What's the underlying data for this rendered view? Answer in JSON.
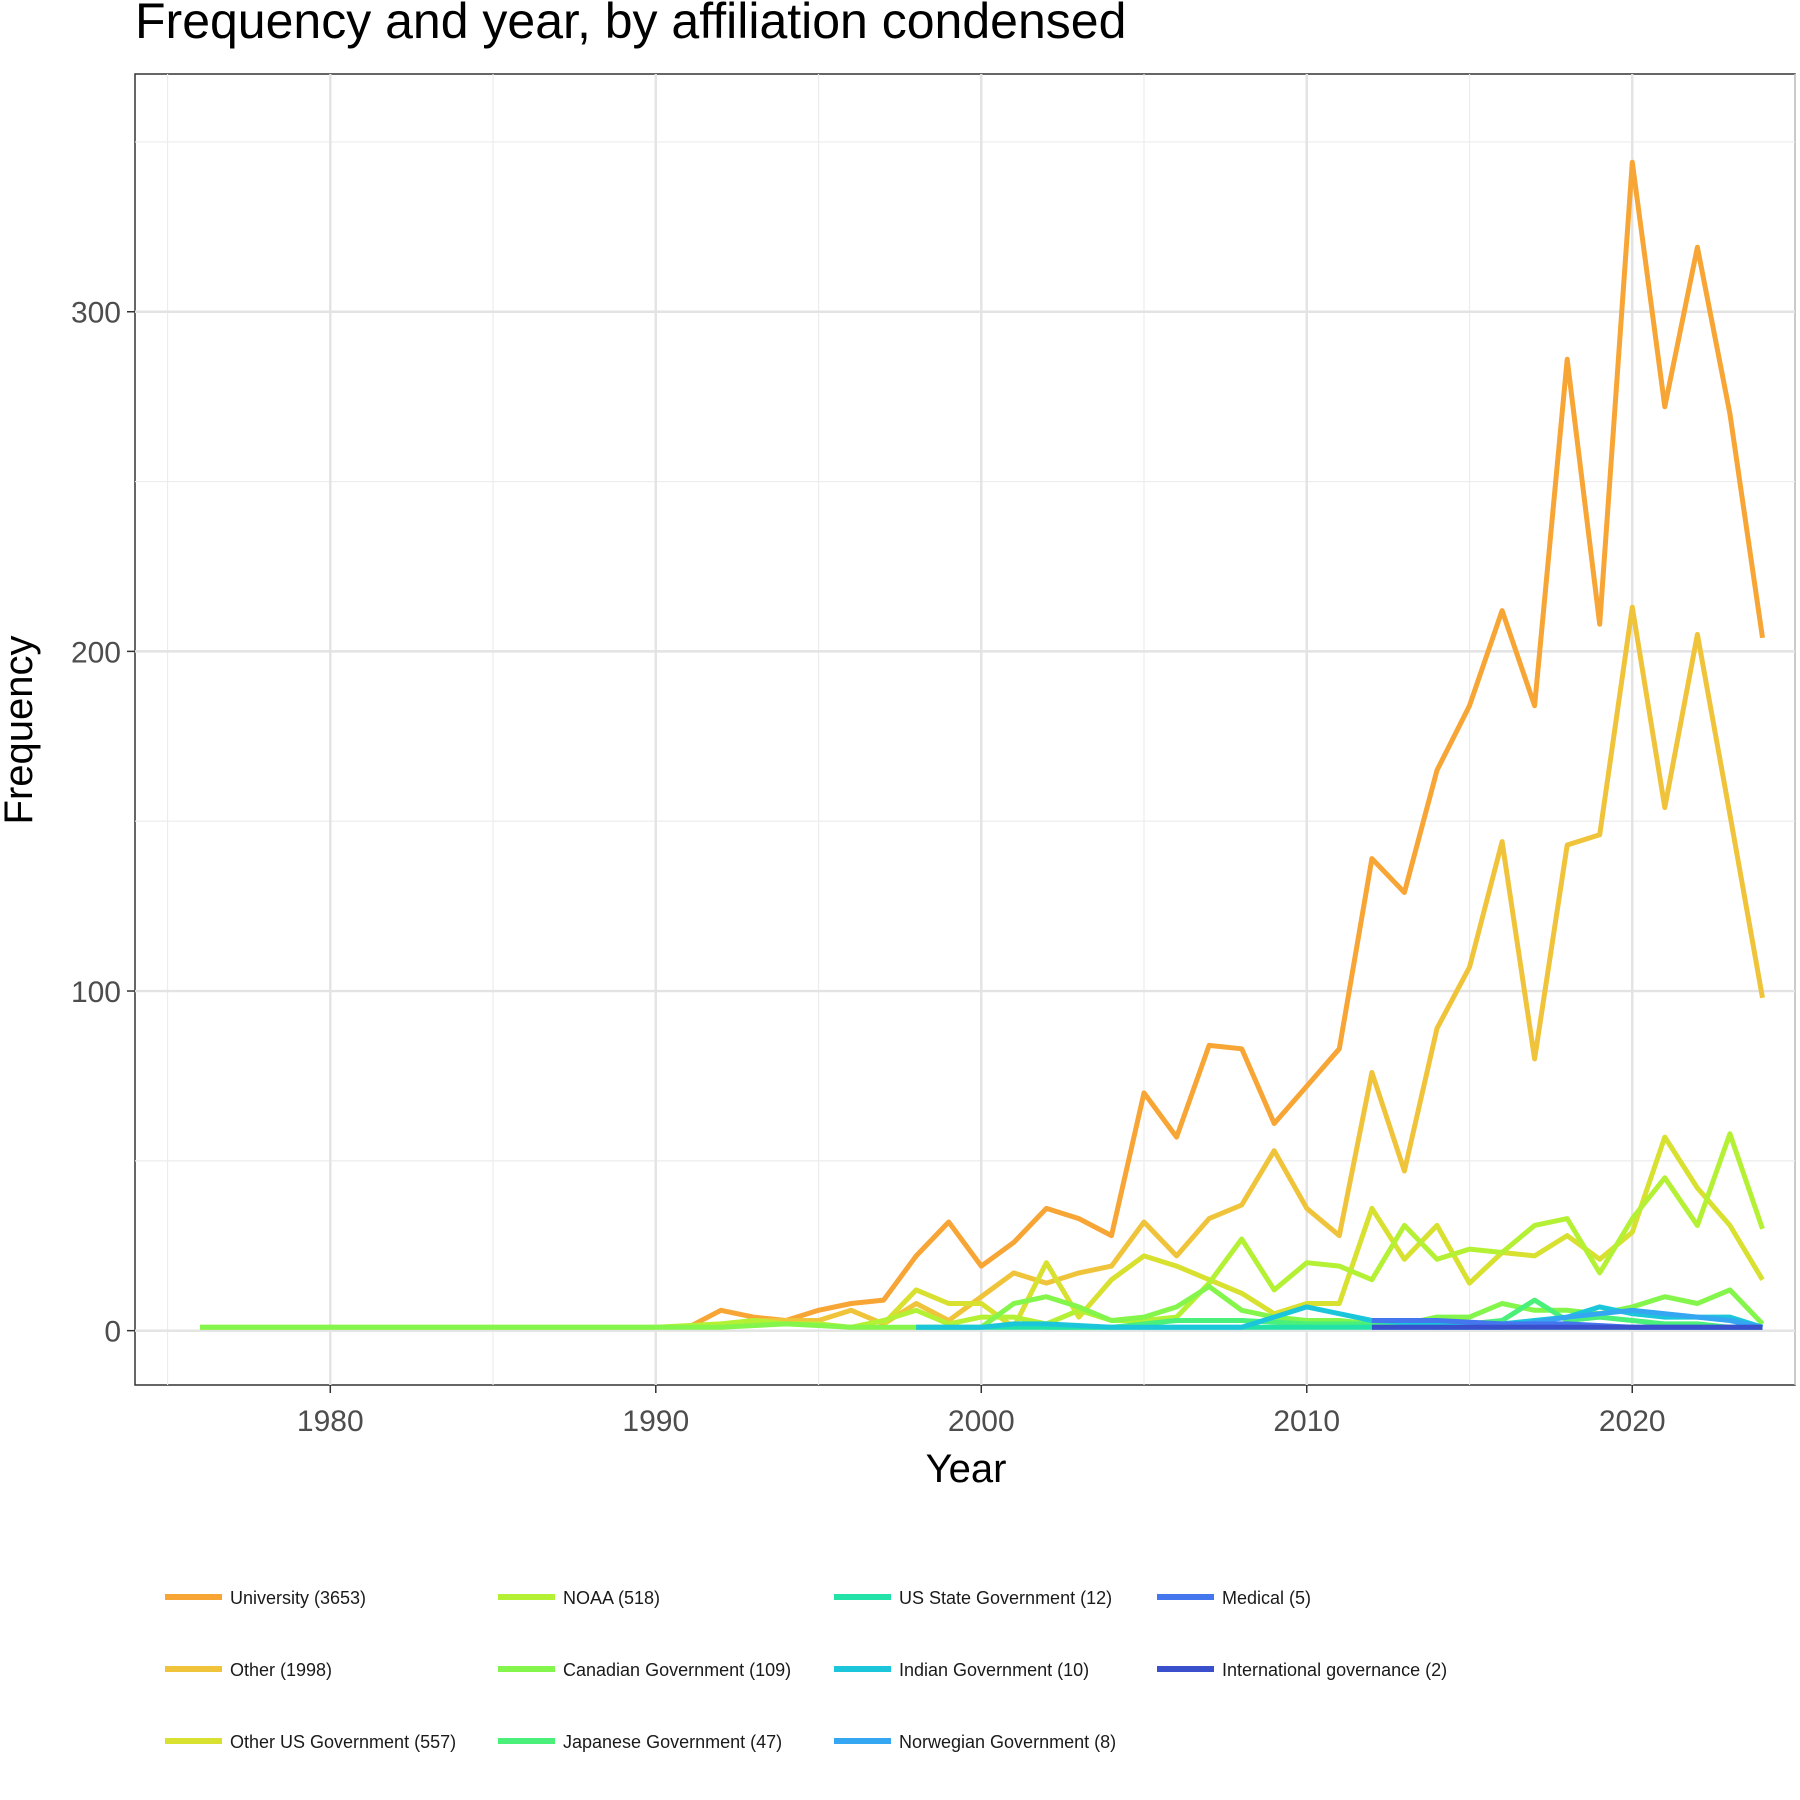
{
  "chart_data": {
    "type": "line",
    "title": "Frequency and year, by affiliation condensed",
    "xlabel": "Year",
    "ylabel": "Frequency",
    "xlim": [
      1974,
      2025
    ],
    "ylim": [
      -16,
      370
    ],
    "xticks": [
      1980,
      1990,
      2000,
      2010,
      2020
    ],
    "yticks": [
      0,
      100,
      200,
      300
    ],
    "grid": true,
    "legend_position": "bottom",
    "series": [
      {
        "name": "University (3653)",
        "color": "#F7A535",
        "x": [
          1991,
          1992,
          1993,
          1994,
          1995,
          1996,
          1997,
          1998,
          1999,
          2000,
          2001,
          2002,
          2003,
          2004,
          2005,
          2006,
          2007,
          2008,
          2009,
          2010,
          2011,
          2012,
          2013,
          2014,
          2015,
          2016,
          2017,
          2018,
          2019,
          2020,
          2021,
          2022,
          2023,
          2024
        ],
        "values": [
          1,
          6,
          4,
          3,
          6,
          8,
          9,
          22,
          32,
          19,
          26,
          36,
          33,
          28,
          70,
          57,
          84,
          83,
          61,
          72,
          83,
          139,
          129,
          165,
          184,
          212,
          184,
          286,
          208,
          344,
          272,
          319,
          270,
          204
        ]
      },
      {
        "name": "Other (1998)",
        "color": "#F0C43A",
        "x": [
          1992,
          1993,
          1994,
          1995,
          1996,
          1997,
          1998,
          1999,
          2000,
          2001,
          2002,
          2003,
          2004,
          2005,
          2006,
          2007,
          2008,
          2009,
          2010,
          2011,
          2012,
          2013,
          2014,
          2015,
          2016,
          2017,
          2018,
          2019,
          2020,
          2021,
          2022,
          2023,
          2024
        ],
        "values": [
          1,
          3,
          3,
          3,
          6,
          2,
          8,
          3,
          10,
          17,
          14,
          17,
          19,
          32,
          22,
          33,
          37,
          53,
          36,
          28,
          76,
          47,
          89,
          107,
          144,
          80,
          143,
          146,
          213,
          154,
          205,
          152,
          98
        ]
      },
      {
        "name": "Other US Government (557)",
        "color": "#D8E030",
        "x": [
          1997,
          1998,
          1999,
          2000,
          2001,
          2002,
          2003,
          2004,
          2005,
          2006,
          2007,
          2008,
          2009,
          2010,
          2011,
          2012,
          2013,
          2014,
          2015,
          2016,
          2017,
          2018,
          2019,
          2020,
          2021,
          2022,
          2023,
          2024
        ],
        "values": [
          2,
          12,
          8,
          8,
          1,
          20,
          4,
          15,
          22,
          19,
          15,
          11,
          5,
          8,
          8,
          36,
          21,
          31,
          14,
          23,
          22,
          28,
          21,
          29,
          57,
          42,
          31,
          15
        ]
      },
      {
        "name": "NOAA (518)",
        "color": "#B4F135",
        "x": [
          1976,
          1980,
          1985,
          1990,
          1992,
          1993,
          1994,
          1995,
          1996,
          1997,
          1998,
          1999,
          2000,
          2001,
          2002,
          2003,
          2004,
          2005,
          2006,
          2007,
          2008,
          2009,
          2010,
          2011,
          2012,
          2013,
          2014,
          2015,
          2016,
          2017,
          2018,
          2019,
          2020,
          2021,
          2022,
          2023,
          2024
        ],
        "values": [
          1,
          1,
          1,
          1,
          2,
          3,
          2,
          2,
          1,
          3,
          6,
          2,
          4,
          4,
          2,
          6,
          3,
          3,
          4,
          14,
          27,
          12,
          20,
          19,
          15,
          31,
          21,
          24,
          23,
          31,
          33,
          17,
          33,
          45,
          31,
          58,
          30
        ]
      },
      {
        "name": "Canadian Government (109)",
        "color": "#84F54A",
        "x": [
          1976,
          1980,
          1985,
          1990,
          1992,
          1994,
          1996,
          1998,
          2000,
          2001,
          2002,
          2003,
          2004,
          2005,
          2006,
          2007,
          2008,
          2009,
          2010,
          2011,
          2012,
          2013,
          2014,
          2015,
          2016,
          2017,
          2018,
          2019,
          2020,
          2021,
          2022,
          2023,
          2024
        ],
        "values": [
          1,
          1,
          1,
          1,
          1,
          2,
          1,
          1,
          1,
          8,
          10,
          7,
          3,
          4,
          7,
          13,
          6,
          4,
          3,
          3,
          2,
          2,
          4,
          4,
          8,
          6,
          6,
          5,
          7,
          10,
          8,
          12,
          2
        ]
      },
      {
        "name": "Japanese Government (47)",
        "color": "#4AF07A",
        "x": [
          2002,
          2004,
          2006,
          2008,
          2010,
          2012,
          2014,
          2015,
          2016,
          2017,
          2018,
          2019,
          2020,
          2021,
          2022,
          2023,
          2024
        ],
        "values": [
          1,
          1,
          3,
          3,
          2,
          2,
          1,
          2,
          3,
          9,
          3,
          4,
          3,
          2,
          2,
          1,
          1
        ]
      },
      {
        "name": "US State Government (12)",
        "color": "#22E2A8",
        "x": [
          1998,
          2000,
          2002,
          2004,
          2006,
          2008,
          2010,
          2012,
          2014,
          2016,
          2018,
          2020,
          2022,
          2024
        ],
        "values": [
          1,
          1,
          1,
          1,
          1,
          1,
          1,
          1,
          1,
          1,
          1,
          1,
          1,
          1
        ]
      },
      {
        "name": "Indian Government (10)",
        "color": "#1CC6DA",
        "x": [
          1998,
          2000,
          2001,
          2002,
          2004,
          2006,
          2008,
          2009,
          2010,
          2011,
          2012,
          2014,
          2016,
          2017,
          2018,
          2019,
          2020,
          2021,
          2022,
          2023,
          2024
        ],
        "values": [
          1,
          1,
          2,
          2,
          1,
          1,
          1,
          4,
          7,
          5,
          3,
          2,
          2,
          3,
          4,
          7,
          5,
          4,
          4,
          4,
          1
        ]
      },
      {
        "name": "Norwegian Government (8)",
        "color": "#35A6F2",
        "x": [
          2012,
          2014,
          2016,
          2018,
          2019,
          2020,
          2021,
          2022,
          2023,
          2024
        ],
        "values": [
          1,
          1,
          1,
          4,
          5,
          6,
          5,
          4,
          3,
          1
        ]
      },
      {
        "name": "Medical (5)",
        "color": "#4477EE",
        "x": [
          2012,
          2014,
          2016,
          2018,
          2020,
          2022,
          2024
        ],
        "values": [
          3,
          3,
          2,
          2,
          1,
          1,
          1
        ]
      },
      {
        "name": "International governance (2)",
        "color": "#3A4FCC",
        "x": [
          2012,
          2018,
          2024
        ],
        "values": [
          1,
          1,
          1
        ]
      }
    ]
  }
}
